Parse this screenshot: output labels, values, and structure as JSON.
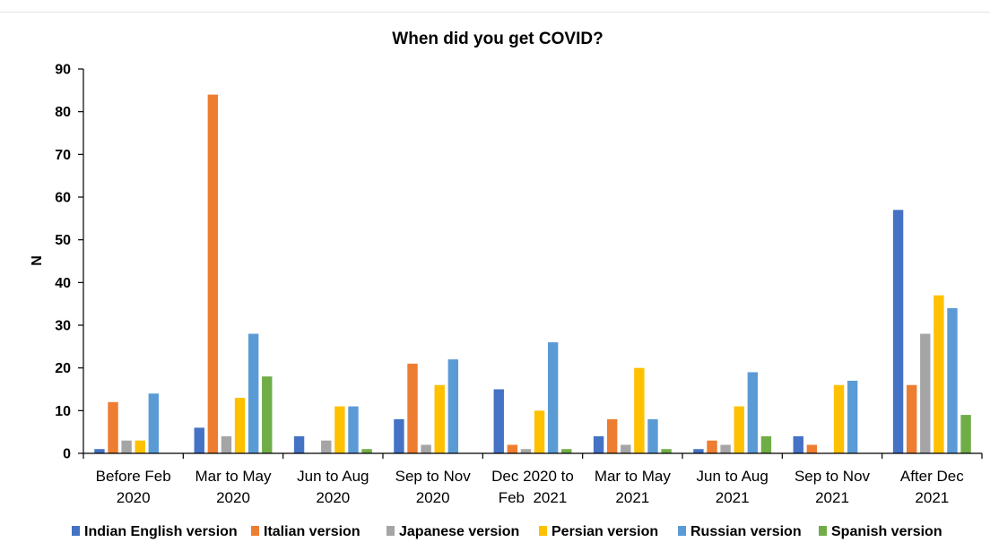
{
  "chart_data": {
    "type": "bar",
    "title": "When did you get COVID?",
    "xlabel": "",
    "ylabel": "N",
    "ylim": [
      0,
      90
    ],
    "yticks": [
      0,
      10,
      20,
      30,
      40,
      50,
      60,
      70,
      80,
      90
    ],
    "grid": false,
    "legend_position": "bottom",
    "categories": [
      [
        "Before Feb",
        "2020"
      ],
      [
        "Mar to May",
        "2020"
      ],
      [
        "Jun to Aug",
        "2020"
      ],
      [
        "Sep to Nov",
        "2020"
      ],
      [
        "Dec 2020 to",
        "Feb  2021"
      ],
      [
        "Mar to May",
        "2021"
      ],
      [
        "Jun to Aug",
        "2021"
      ],
      [
        "Sep to Nov",
        "2021"
      ],
      [
        "After Dec",
        "2021"
      ]
    ],
    "series": [
      {
        "name": "Indian English version",
        "color": "#4472C4",
        "values": [
          1,
          6,
          4,
          8,
          15,
          4,
          1,
          4,
          57
        ]
      },
      {
        "name": "Italian version",
        "color": "#ED7D31",
        "values": [
          12,
          84,
          0,
          21,
          2,
          8,
          3,
          2,
          16
        ]
      },
      {
        "name": "Japanese version",
        "color": "#A5A5A5",
        "values": [
          3,
          4,
          3,
          2,
          1,
          2,
          2,
          0,
          28
        ]
      },
      {
        "name": "Persian version",
        "color": "#FFC000",
        "values": [
          3,
          13,
          11,
          16,
          10,
          20,
          11,
          16,
          37
        ]
      },
      {
        "name": "Russian version",
        "color": "#5B9BD5",
        "values": [
          14,
          28,
          11,
          22,
          26,
          8,
          19,
          17,
          34
        ]
      },
      {
        "name": "Spanish version",
        "color": "#70AD47",
        "values": [
          0,
          18,
          1,
          0,
          1,
          1,
          4,
          0,
          9
        ]
      }
    ]
  }
}
